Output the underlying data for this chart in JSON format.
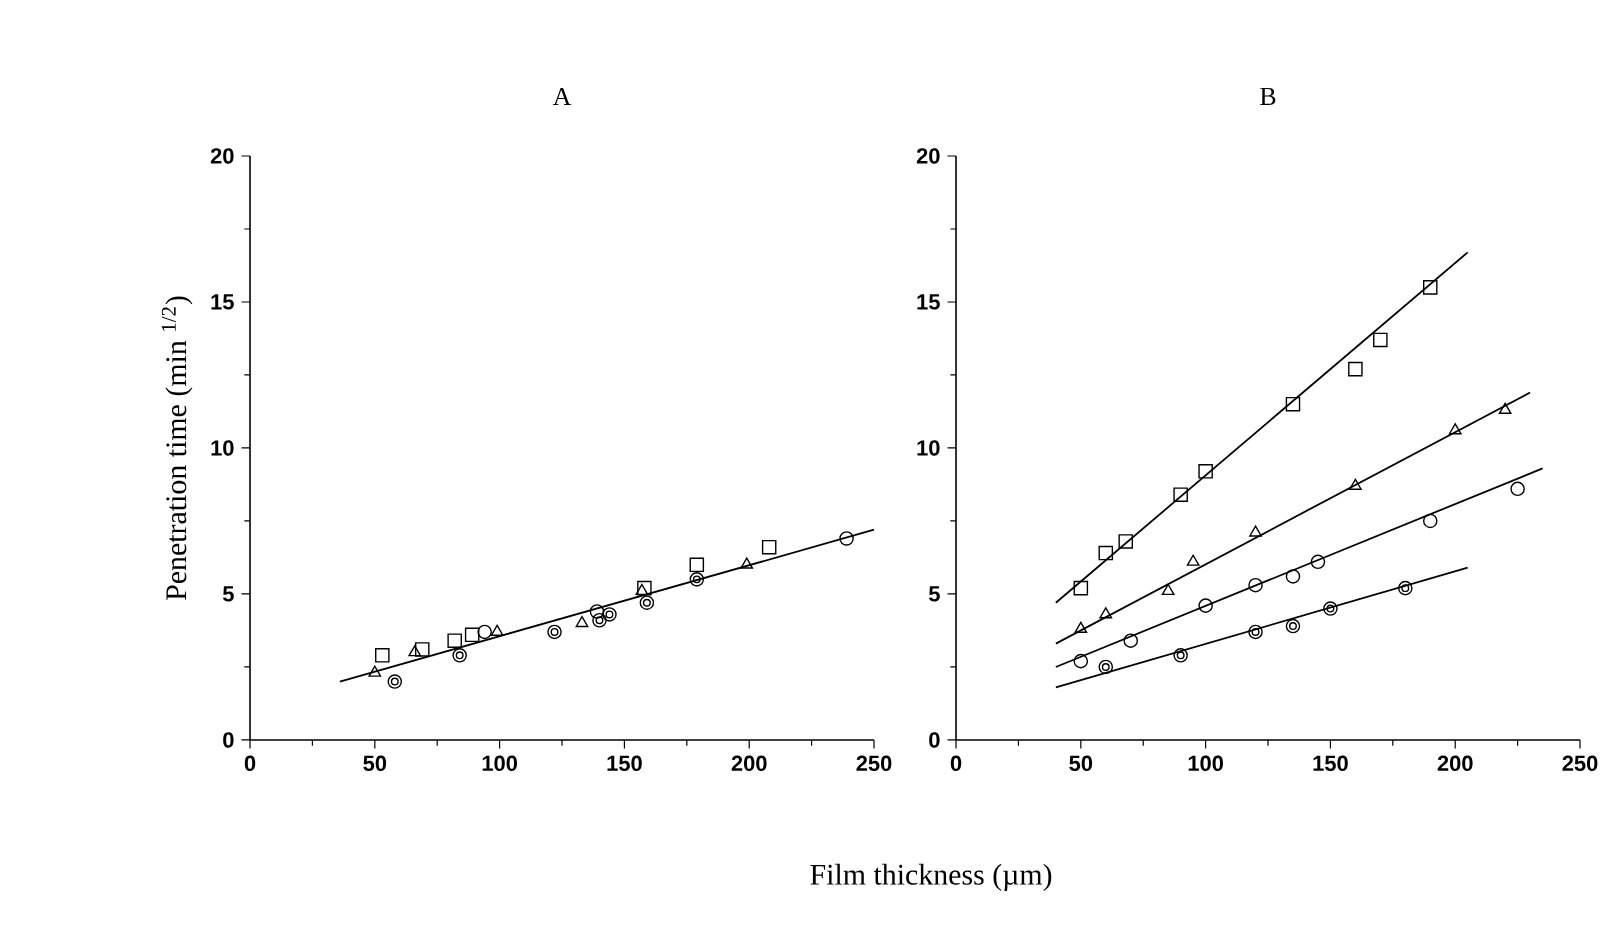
{
  "chart_data": [
    {
      "type": "scatter",
      "title": "A",
      "ylabel": "Penetration time (min $^{1/2}$)",
      "xlim": [
        0,
        250
      ],
      "ylim": [
        0,
        20
      ],
      "xticks": [
        0,
        50,
        100,
        150,
        200,
        250
      ],
      "yticks": [
        0,
        5,
        10,
        15,
        20
      ],
      "series": [
        {
          "color": "#000000",
          "marker": "square",
          "x": [
            53,
            69,
            82,
            89,
            158,
            179,
            208
          ],
          "values": [
            2.9,
            3.1,
            3.4,
            3.6,
            5.2,
            6.0,
            6.6
          ]
        },
        {
          "color": "#000000",
          "marker": "triangle",
          "x": [
            50,
            66,
            99,
            133,
            157,
            199
          ],
          "values": [
            2.3,
            3.0,
            3.7,
            4.0,
            5.1,
            6.0
          ]
        },
        {
          "color": "#000000",
          "marker": "circle",
          "x": [
            94,
            139,
            239
          ],
          "values": [
            3.7,
            4.4,
            6.9
          ]
        },
        {
          "color": "#000000",
          "x": [
            58,
            84,
            122,
            140,
            144,
            159,
            179
          ],
          "values": [
            2.0,
            2.9,
            3.7,
            4.1,
            4.3,
            4.7,
            5.5
          ]
        },
        {
          "type": "line",
          "color": "#000000",
          "marker": "none",
          "line_style": "solid",
          "x": [
            36,
            250
          ],
          "values": [
            2.0,
            7.2
          ]
        }
      ]
    },
    {
      "type": "scatter",
      "title": "B",
      "xlabel": "Film thickness (µm)",
      "xlim": [
        0,
        250
      ],
      "ylim": [
        0,
        20
      ],
      "xticks": [
        0,
        50,
        100,
        150,
        200,
        250
      ],
      "yticks": [
        0,
        5,
        10,
        15,
        20
      ],
      "series": [
        {
          "color": "#000000",
          "marker": "square",
          "x": [
            50,
            60,
            68,
            90,
            100,
            135,
            160,
            170,
            190
          ],
          "values": [
            5.2,
            6.4,
            6.8,
            8.4,
            9.2,
            11.5,
            12.7,
            13.7,
            15.5
          ]
        },
        {
          "color": "#000000",
          "marker": "triangle",
          "x": [
            50,
            60,
            85,
            95,
            120,
            160,
            200,
            220
          ],
          "values": [
            3.8,
            4.3,
            5.1,
            6.1,
            7.1,
            8.7,
            10.6,
            11.3
          ]
        },
        {
          "color": "#000000",
          "marker": "circle",
          "x": [
            50,
            70,
            100,
            120,
            135,
            145,
            190,
            225
          ],
          "values": [
            2.7,
            3.4,
            4.6,
            5.3,
            5.6,
            6.1,
            7.5,
            8.6
          ]
        },
        {
          "color": "#000000",
          "x": [
            60,
            90,
            120,
            135,
            150,
            180
          ],
          "values": [
            2.5,
            2.9,
            3.7,
            3.9,
            4.5,
            5.2
          ]
        },
        {
          "type": "line",
          "color": "#000000",
          "marker": "none",
          "line_style": "solid",
          "x": [
            40,
            205
          ],
          "values": [
            4.7,
            16.7
          ]
        },
        {
          "type": "line",
          "color": "#000000",
          "marker": "none",
          "line_style": "solid",
          "x": [
            40,
            230
          ],
          "values": [
            3.3,
            11.9
          ]
        },
        {
          "type": "line",
          "color": "#000000",
          "marker": "none",
          "line_style": "solid",
          "x": [
            40,
            235
          ],
          "values": [
            2.5,
            9.3
          ]
        },
        {
          "type": "line",
          "color": "#000000",
          "marker": "none",
          "line_style": "solid",
          "x": [
            40,
            205
          ],
          "values": [
            1.8,
            5.9
          ]
        }
      ]
    }
  ]
}
